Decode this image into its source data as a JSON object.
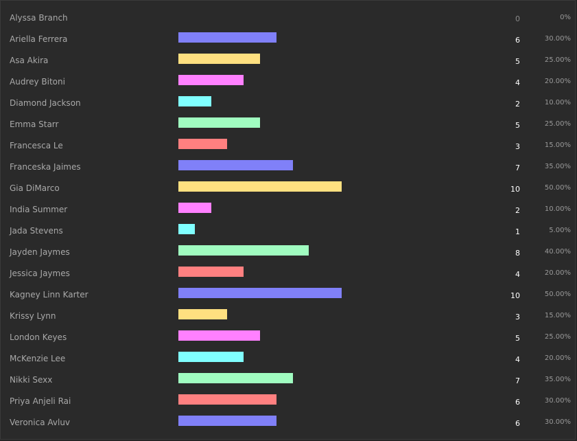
{
  "colors": {
    "background": "#2a2a2a",
    "palette": [
      "#8080f8",
      "#ffe080",
      "#ff80ff",
      "#80ffff",
      "#a0fcc0",
      "#ff8080"
    ]
  },
  "max_count": 20,
  "rows": [
    {
      "name": "Alyssa Branch",
      "count": "0",
      "percent": "0%",
      "color": "#8080f8"
    },
    {
      "name": "Ariella Ferrera",
      "count": "6",
      "percent": "30.00%",
      "color": "#8080f8"
    },
    {
      "name": "Asa Akira",
      "count": "5",
      "percent": "25.00%",
      "color": "#ffe080"
    },
    {
      "name": "Audrey Bitoni",
      "count": "4",
      "percent": "20.00%",
      "color": "#ff80ff"
    },
    {
      "name": "Diamond Jackson",
      "count": "2",
      "percent": "10.00%",
      "color": "#80ffff"
    },
    {
      "name": "Emma Starr",
      "count": "5",
      "percent": "25.00%",
      "color": "#a0fcc0"
    },
    {
      "name": "Francesca Le",
      "count": "3",
      "percent": "15.00%",
      "color": "#ff8080"
    },
    {
      "name": "Franceska Jaimes",
      "count": "7",
      "percent": "35.00%",
      "color": "#8080f8"
    },
    {
      "name": "Gia DiMarco",
      "count": "10",
      "percent": "50.00%",
      "color": "#ffe080"
    },
    {
      "name": "India Summer",
      "count": "2",
      "percent": "10.00%",
      "color": "#ff80ff"
    },
    {
      "name": "Jada Stevens",
      "count": "1",
      "percent": "5.00%",
      "color": "#80ffff"
    },
    {
      "name": "Jayden Jaymes",
      "count": "8",
      "percent": "40.00%",
      "color": "#a0fcc0"
    },
    {
      "name": "Jessica Jaymes",
      "count": "4",
      "percent": "20.00%",
      "color": "#ff8080"
    },
    {
      "name": "Kagney Linn Karter",
      "count": "10",
      "percent": "50.00%",
      "color": "#8080f8"
    },
    {
      "name": "Krissy Lynn",
      "count": "3",
      "percent": "15.00%",
      "color": "#ffe080"
    },
    {
      "name": "London Keyes",
      "count": "5",
      "percent": "25.00%",
      "color": "#ff80ff"
    },
    {
      "name": "McKenzie Lee",
      "count": "4",
      "percent": "20.00%",
      "color": "#80ffff"
    },
    {
      "name": "Nikki Sexx",
      "count": "7",
      "percent": "35.00%",
      "color": "#a0fcc0"
    },
    {
      "name": "Priya Anjeli Rai",
      "count": "6",
      "percent": "30.00%",
      "color": "#ff8080"
    },
    {
      "name": "Veronica Avluv",
      "count": "6",
      "percent": "30.00%",
      "color": "#8080f8"
    }
  ]
}
